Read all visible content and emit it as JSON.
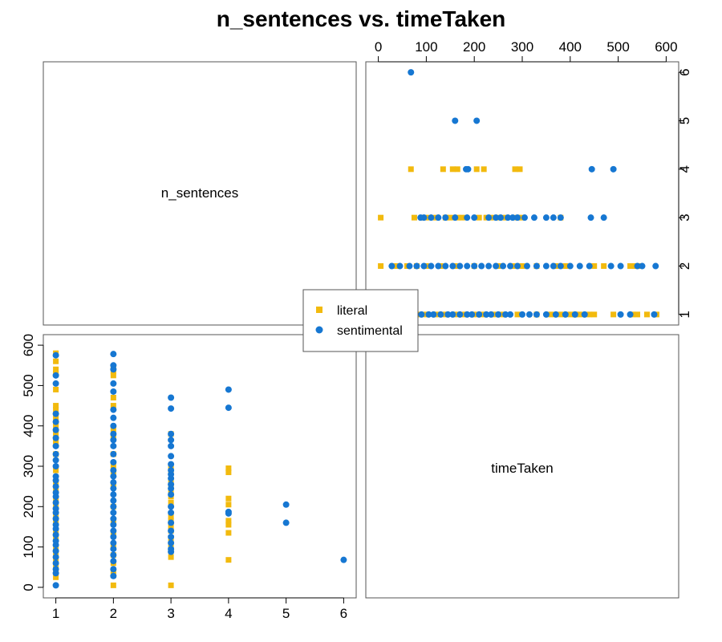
{
  "chart_data": {
    "type": "scatter",
    "title": "n_sentences vs. timeTaken",
    "variables": [
      "n_sentences",
      "timeTaken"
    ],
    "layout": "pairs-matrix",
    "axes": {
      "n_sentences": {
        "range": [
          1,
          6
        ],
        "ticks": [
          1,
          2,
          3,
          4,
          5,
          6
        ]
      },
      "timeTaken": {
        "range": [
          0,
          600
        ],
        "ticks": [
          0,
          100,
          200,
          300,
          400,
          500,
          600
        ]
      }
    },
    "legend": {
      "position": "center",
      "entries": [
        {
          "name": "literal",
          "marker": "square",
          "color": "#F2BA0E"
        },
        {
          "name": "sentimental",
          "marker": "circle",
          "color": "#1677D2"
        }
      ]
    },
    "grid": false,
    "series": [
      {
        "name": "literal",
        "color": "#F2BA0E",
        "marker": "square",
        "points": [
          [
            1,
            25
          ],
          [
            1,
            40
          ],
          [
            1,
            55
          ],
          [
            1,
            70
          ],
          [
            1,
            85
          ],
          [
            1,
            100
          ],
          [
            1,
            120
          ],
          [
            1,
            140
          ],
          [
            1,
            160
          ],
          [
            1,
            180
          ],
          [
            1,
            200
          ],
          [
            1,
            220
          ],
          [
            1,
            240
          ],
          [
            1,
            260
          ],
          [
            1,
            290
          ],
          [
            1,
            330
          ],
          [
            1,
            360
          ],
          [
            1,
            380
          ],
          [
            1,
            400
          ],
          [
            1,
            410
          ],
          [
            1,
            420
          ],
          [
            1,
            440
          ],
          [
            1,
            450
          ],
          [
            1,
            490
          ],
          [
            1,
            530
          ],
          [
            1,
            540
          ],
          [
            1,
            560
          ],
          [
            1,
            580
          ],
          [
            2,
            5
          ],
          [
            2,
            30
          ],
          [
            2,
            40
          ],
          [
            2,
            60
          ],
          [
            2,
            80
          ],
          [
            2,
            100
          ],
          [
            2,
            130
          ],
          [
            2,
            160
          ],
          [
            2,
            200
          ],
          [
            2,
            250
          ],
          [
            2,
            280
          ],
          [
            2,
            300
          ],
          [
            2,
            330
          ],
          [
            2,
            370
          ],
          [
            2,
            390
          ],
          [
            2,
            450
          ],
          [
            2,
            470
          ],
          [
            2,
            525
          ],
          [
            2,
            535
          ],
          [
            2,
            545
          ],
          [
            3,
            5
          ],
          [
            3,
            75
          ],
          [
            3,
            90
          ],
          [
            3,
            100
          ],
          [
            3,
            120
          ],
          [
            3,
            140
          ],
          [
            3,
            150
          ],
          [
            3,
            165
          ],
          [
            3,
            175
          ],
          [
            3,
            210
          ],
          [
            3,
            225
          ],
          [
            3,
            235
          ],
          [
            3,
            250
          ],
          [
            3,
            265
          ],
          [
            3,
            290
          ],
          [
            3,
            300
          ],
          [
            3,
            380
          ],
          [
            4,
            68
          ],
          [
            4,
            135
          ],
          [
            4,
            155
          ],
          [
            4,
            165
          ],
          [
            4,
            205
          ],
          [
            4,
            220
          ],
          [
            4,
            285
          ],
          [
            4,
            295
          ]
        ]
      },
      {
        "name": "sentimental",
        "color": "#1677D2",
        "marker": "circle",
        "points": [
          [
            1,
            5
          ],
          [
            1,
            35
          ],
          [
            1,
            45
          ],
          [
            1,
            60
          ],
          [
            1,
            75
          ],
          [
            1,
            90
          ],
          [
            1,
            105
          ],
          [
            1,
            115
          ],
          [
            1,
            130
          ],
          [
            1,
            145
          ],
          [
            1,
            155
          ],
          [
            1,
            170
          ],
          [
            1,
            185
          ],
          [
            1,
            195
          ],
          [
            1,
            210
          ],
          [
            1,
            225
          ],
          [
            1,
            235
          ],
          [
            1,
            250
          ],
          [
            1,
            265
          ],
          [
            1,
            275
          ],
          [
            1,
            300
          ],
          [
            1,
            315
          ],
          [
            1,
            330
          ],
          [
            1,
            350
          ],
          [
            1,
            370
          ],
          [
            1,
            390
          ],
          [
            1,
            410
          ],
          [
            1,
            430
          ],
          [
            1,
            505
          ],
          [
            1,
            525
          ],
          [
            1,
            575
          ],
          [
            2,
            28
          ],
          [
            2,
            45
          ],
          [
            2,
            65
          ],
          [
            2,
            80
          ],
          [
            2,
            95
          ],
          [
            2,
            110
          ],
          [
            2,
            125
          ],
          [
            2,
            140
          ],
          [
            2,
            155
          ],
          [
            2,
            170
          ],
          [
            2,
            185
          ],
          [
            2,
            200
          ],
          [
            2,
            215
          ],
          [
            2,
            230
          ],
          [
            2,
            245
          ],
          [
            2,
            260
          ],
          [
            2,
            275
          ],
          [
            2,
            290
          ],
          [
            2,
            310
          ],
          [
            2,
            330
          ],
          [
            2,
            350
          ],
          [
            2,
            365
          ],
          [
            2,
            380
          ],
          [
            2,
            400
          ],
          [
            2,
            420
          ],
          [
            2,
            440
          ],
          [
            2,
            485
          ],
          [
            2,
            505
          ],
          [
            2,
            540
          ],
          [
            2,
            550
          ],
          [
            2,
            578
          ],
          [
            3,
            88
          ],
          [
            3,
            95
          ],
          [
            3,
            110
          ],
          [
            3,
            125
          ],
          [
            3,
            140
          ],
          [
            3,
            160
          ],
          [
            3,
            185
          ],
          [
            3,
            200
          ],
          [
            3,
            230
          ],
          [
            3,
            245
          ],
          [
            3,
            255
          ],
          [
            3,
            270
          ],
          [
            3,
            280
          ],
          [
            3,
            290
          ],
          [
            3,
            305
          ],
          [
            3,
            325
          ],
          [
            3,
            350
          ],
          [
            3,
            365
          ],
          [
            3,
            380
          ],
          [
            3,
            443
          ],
          [
            3,
            470
          ],
          [
            4,
            183
          ],
          [
            4,
            187
          ],
          [
            4,
            445
          ],
          [
            4,
            490
          ],
          [
            5,
            160
          ],
          [
            5,
            205
          ],
          [
            6,
            68
          ]
        ]
      }
    ]
  }
}
